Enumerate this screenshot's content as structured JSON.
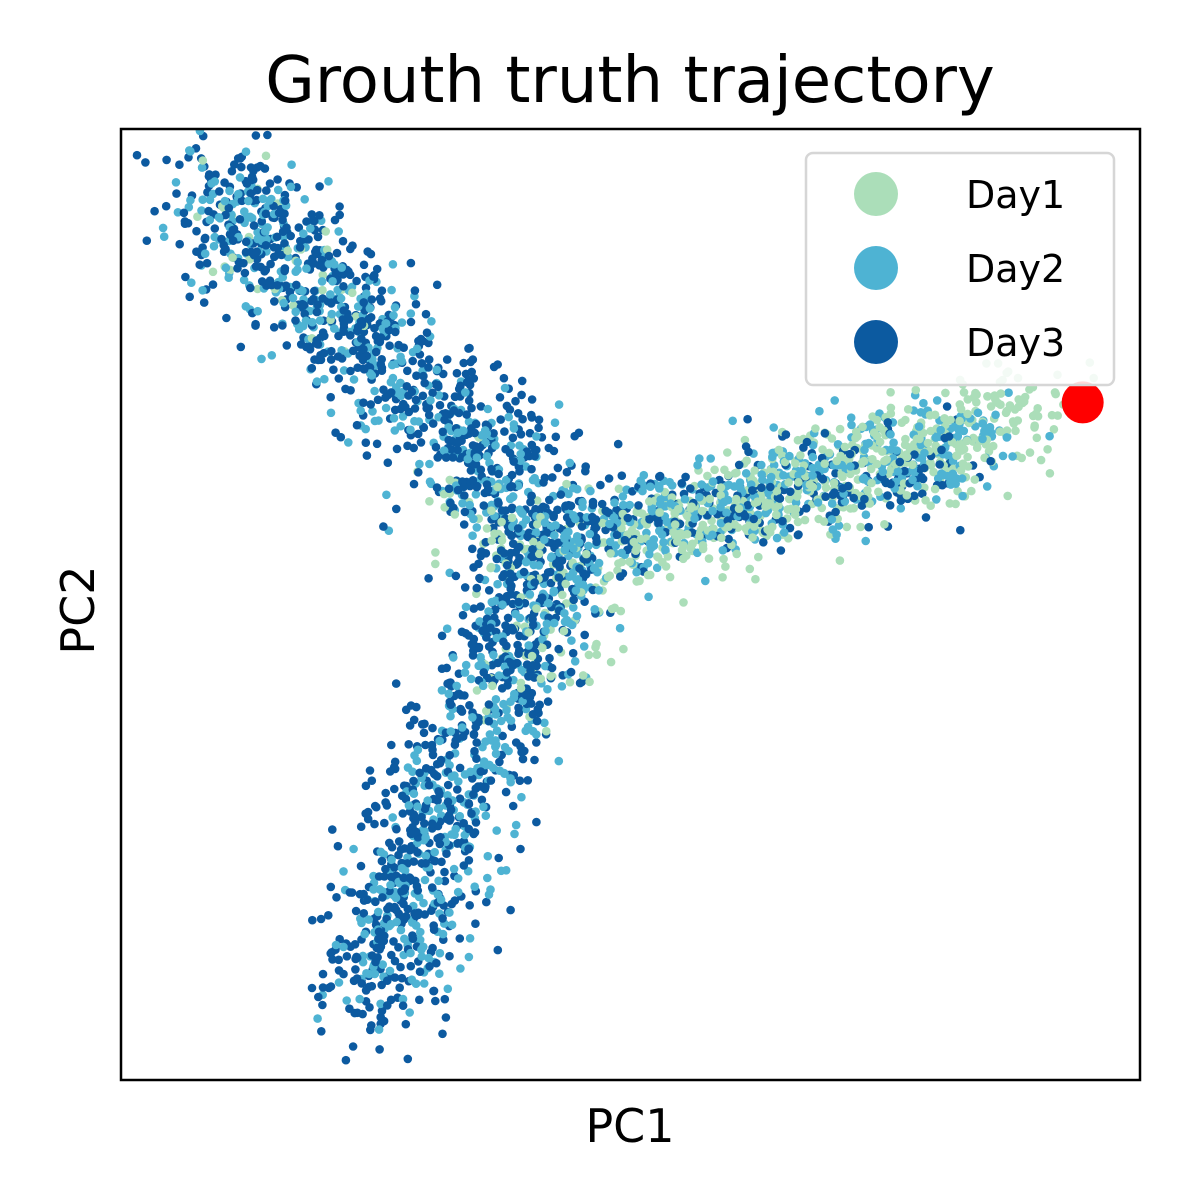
{
  "chart_data": {
    "type": "scatter",
    "title": "Grouth truth trajectory",
    "xlabel": "PC1",
    "ylabel": "PC2",
    "xlim": [
      -4,
      4
    ],
    "ylim": [
      -4,
      4
    ],
    "grid": false,
    "axis_ticks": false,
    "legend_position": "top-right",
    "series": [
      {
        "name": "Day1",
        "color": "#abdeb9",
        "approx_point_count": 700,
        "branches": [
          {
            "from": [
              0.0,
              0.5
            ],
            "to": [
              3.3,
              1.7
            ],
            "weight": 0.75,
            "spread": 0.22
          },
          {
            "from": [
              -1.3,
              0.8
            ],
            "to": [
              -0.2,
              0.2
            ],
            "weight": 0.12,
            "spread": 0.22
          },
          {
            "from": [
              -0.9,
              -0.8
            ],
            "to": [
              -0.2,
              0.2
            ],
            "weight": 0.08,
            "spread": 0.2
          },
          {
            "from": [
              -3.3,
              3.5
            ],
            "to": [
              -2.0,
              2.2
            ],
            "weight": 0.05,
            "spread": 0.2
          }
        ]
      },
      {
        "name": "Day2",
        "color": "#4eb3d3",
        "approx_point_count": 1200,
        "branches": [
          {
            "from": [
              -0.5,
              0.5
            ],
            "to": [
              2.8,
              1.4
            ],
            "weight": 0.35,
            "spread": 0.22
          },
          {
            "from": [
              -3.3,
              3.5
            ],
            "to": [
              -0.6,
              0.6
            ],
            "weight": 0.33,
            "spread": 0.26
          },
          {
            "from": [
              -0.6,
              0.4
            ],
            "to": [
              -2.0,
              -3.2
            ],
            "weight": 0.32,
            "spread": 0.26
          }
        ]
      },
      {
        "name": "Day3",
        "color": "#0c5aa0",
        "approx_point_count": 1600,
        "branches": [
          {
            "from": [
              -3.4,
              3.6
            ],
            "to": [
              -0.6,
              0.7
            ],
            "weight": 0.42,
            "spread": 0.28
          },
          {
            "from": [
              -0.6,
              0.6
            ],
            "to": [
              -2.1,
              -3.4
            ],
            "weight": 0.42,
            "spread": 0.28
          },
          {
            "from": [
              -0.6,
              0.6
            ],
            "to": [
              2.5,
              1.2
            ],
            "weight": 0.16,
            "spread": 0.2
          }
        ]
      }
    ],
    "highlight_point": {
      "x": 3.55,
      "y": 1.7,
      "color": "#ff0000"
    }
  }
}
